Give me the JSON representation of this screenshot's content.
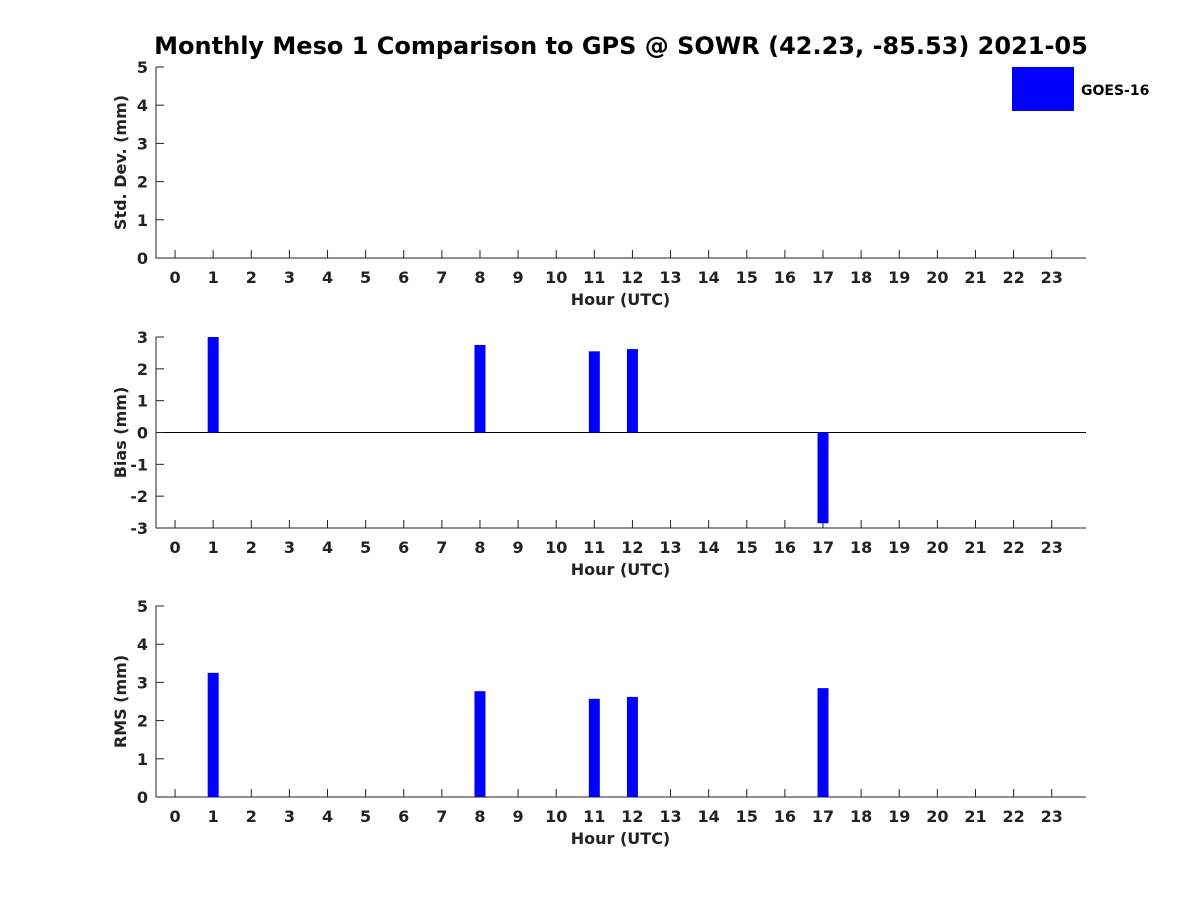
{
  "chart_data": {
    "title": "Monthly Meso 1 Comparison to GPS @ SOWR (42.23, -85.53) 2021-05",
    "legend": {
      "label": "GOES-16",
      "color": "#0000ff",
      "placement": "top-right"
    },
    "series_color": "#0000ff",
    "panels": [
      {
        "id": "std",
        "type": "bar",
        "ylabel": "Std. Dev. (mm)",
        "xlabel": "Hour (UTC)",
        "ylim": [
          0,
          5
        ],
        "yticks": [
          0,
          1,
          2,
          3,
          4,
          5
        ],
        "xticks": [
          0,
          1,
          2,
          3,
          4,
          5,
          6,
          7,
          8,
          9,
          10,
          11,
          12,
          13,
          14,
          15,
          16,
          17,
          18,
          19,
          20,
          21,
          22,
          23
        ],
        "x": [],
        "values": []
      },
      {
        "id": "bias",
        "type": "bar",
        "ylabel": "Bias (mm)",
        "xlabel": "Hour (UTC)",
        "ylim": [
          -3,
          3
        ],
        "yticks": [
          -3,
          -2,
          -1,
          0,
          1,
          2,
          3
        ],
        "xticks": [
          0,
          1,
          2,
          3,
          4,
          5,
          6,
          7,
          8,
          9,
          10,
          11,
          12,
          13,
          14,
          15,
          16,
          17,
          18,
          19,
          20,
          21,
          22,
          23
        ],
        "x": [
          1,
          8,
          11,
          12,
          17
        ],
        "values": [
          3.0,
          2.75,
          2.55,
          2.62,
          -2.85
        ]
      },
      {
        "id": "rms",
        "type": "bar",
        "ylabel": "RMS (mm)",
        "xlabel": "Hour (UTC)",
        "ylim": [
          0,
          5
        ],
        "yticks": [
          0,
          1,
          2,
          3,
          4,
          5
        ],
        "xticks": [
          0,
          1,
          2,
          3,
          4,
          5,
          6,
          7,
          8,
          9,
          10,
          11,
          12,
          13,
          14,
          15,
          16,
          17,
          18,
          19,
          20,
          21,
          22,
          23
        ],
        "x": [
          1,
          8,
          11,
          12,
          17
        ],
        "values": [
          3.25,
          2.77,
          2.57,
          2.62,
          2.85
        ]
      }
    ]
  }
}
